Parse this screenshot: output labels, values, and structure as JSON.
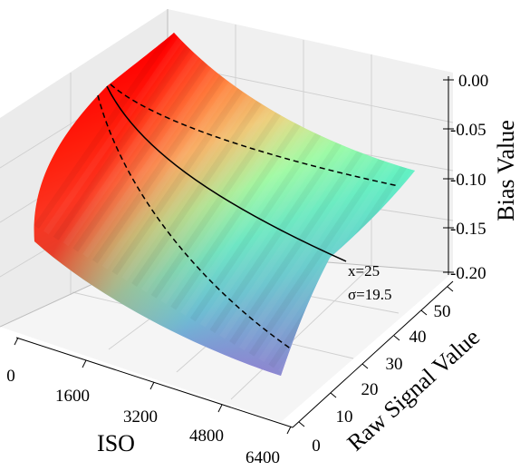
{
  "chart_data": {
    "type": "surface3d",
    "colormap": "rainbow",
    "grid": true,
    "x_axis": {
      "label": "ISO",
      "ticks": [
        0,
        1600,
        3200,
        4800,
        6400
      ],
      "range": [
        0,
        6400
      ]
    },
    "y_axis": {
      "label": "Raw Signal Value",
      "ticks": [
        0,
        10,
        20,
        30,
        40,
        50
      ],
      "range": [
        0,
        50
      ]
    },
    "z_axis": {
      "label": "Bias Value",
      "ticks": [
        "0.00",
        "-0.05",
        "-0.10",
        "-0.15",
        "-0.20"
      ],
      "range": [
        -0.2,
        0.0
      ]
    },
    "surface_corners": [
      {
        "iso": 0,
        "raw": 0,
        "bias": -0.12
      },
      {
        "iso": 0,
        "raw": 50,
        "bias": 0.0
      },
      {
        "iso": 6400,
        "raw": 50,
        "bias": -0.09
      },
      {
        "iso": 6400,
        "raw": 0,
        "bias": -0.2
      }
    ],
    "curves": [
      {
        "style": "solid",
        "label": "x=25"
      },
      {
        "style": "dashed",
        "label": "σ=19.5"
      },
      {
        "style": "dashed",
        "label": ""
      }
    ],
    "annotations": [
      "x=25",
      "σ=19.5"
    ]
  }
}
